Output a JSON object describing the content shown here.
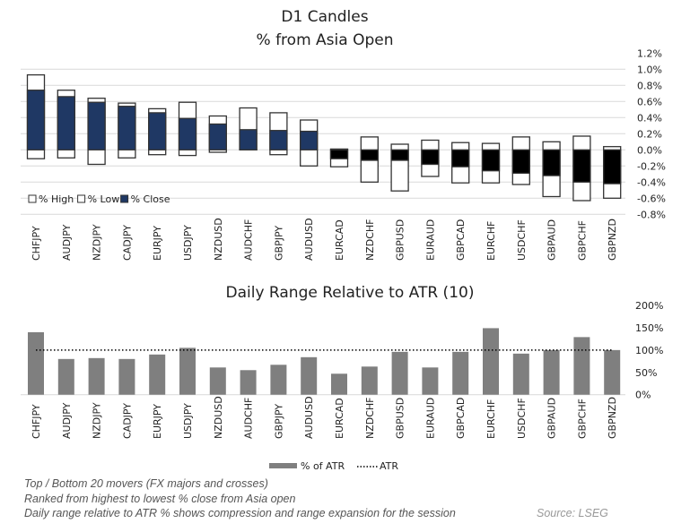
{
  "chart_data": [
    {
      "type": "bar",
      "subtype": "floating-candle",
      "title": "D1 Candles",
      "subtitle": "% from Asia Open",
      "categories": [
        "CHFJPY",
        "AUDJPY",
        "NZDJPY",
        "CADJPY",
        "EURJPY",
        "USDJPY",
        "NZDUSD",
        "AUDCHF",
        "GBPJPY",
        "AUDUSD",
        "EURCAD",
        "NZDCHF",
        "GBPUSD",
        "EURAUD",
        "GBPCAD",
        "EURCHF",
        "USDCHF",
        "GBPAUD",
        "GBPCHF",
        "GBPNZD"
      ],
      "series": [
        {
          "name": "% High",
          "values": [
            0.93,
            0.74,
            0.64,
            0.58,
            0.51,
            0.59,
            0.42,
            0.52,
            0.46,
            0.37,
            0.01,
            0.16,
            0.07,
            0.12,
            0.09,
            0.08,
            0.16,
            0.1,
            0.17,
            0.04
          ]
        },
        {
          "name": "% Low",
          "values": [
            -0.11,
            -0.1,
            -0.18,
            -0.1,
            -0.06,
            -0.07,
            -0.03,
            0.0,
            -0.06,
            -0.2,
            -0.21,
            -0.4,
            -0.51,
            -0.33,
            -0.41,
            -0.41,
            -0.43,
            -0.58,
            -0.63,
            -0.6
          ]
        },
        {
          "name": "% Close",
          "values": [
            0.74,
            0.66,
            0.59,
            0.54,
            0.46,
            0.39,
            0.32,
            0.25,
            0.24,
            0.23,
            -0.11,
            -0.13,
            -0.13,
            -0.18,
            -0.21,
            -0.26,
            -0.29,
            -0.32,
            -0.4,
            -0.42
          ]
        }
      ],
      "yticks": [
        "1.2%",
        "1.0%",
        "0.8%",
        "0.6%",
        "0.4%",
        "0.2%",
        "0.0%",
        "-0.2%",
        "-0.4%",
        "-0.6%",
        "-0.8%"
      ],
      "ylim": [
        -0.8,
        1.2
      ],
      "grid": true,
      "legend": "bottom-left",
      "colors": {
        "positive_close": "#1f3864",
        "negative_close": "#000000",
        "range": "#ffffff",
        "border": "#333333"
      }
    },
    {
      "type": "bar",
      "title": "Daily Range Relative to ATR (10)",
      "categories": [
        "CHFJPY",
        "AUDJPY",
        "NZDJPY",
        "CADJPY",
        "EURJPY",
        "USDJPY",
        "NZDUSD",
        "AUDCHF",
        "GBPJPY",
        "AUDUSD",
        "EURCAD",
        "NZDCHF",
        "GBPUSD",
        "EURAUD",
        "GBPCAD",
        "EURCHF",
        "USDCHF",
        "GBPAUD",
        "GBPCHF",
        "GBPNZD"
      ],
      "series": [
        {
          "name": "% of ATR",
          "values": [
            140,
            80,
            82,
            80,
            90,
            105,
            61,
            55,
            67,
            84,
            47,
            63,
            96,
            61,
            96,
            149,
            92,
            100,
            129,
            100
          ]
        },
        {
          "name": "ATR",
          "values": [
            100,
            100,
            100,
            100,
            100,
            100,
            100,
            100,
            100,
            100,
            100,
            100,
            100,
            100,
            100,
            100,
            100,
            100,
            100,
            100
          ]
        }
      ],
      "yticks": [
        "200%",
        "150%",
        "100%",
        "50%",
        "0%"
      ],
      "ylim": [
        0,
        200
      ],
      "grid": false,
      "legend": "bottom",
      "colors": {
        "bar": "#7f7f7f",
        "atr_line": "#000000"
      }
    }
  ],
  "notes": [
    "Top / Bottom 20 movers (FX majors and crosses)",
    "Ranked from highest to lowest % close from Asia open",
    "Daily range relative to ATR % shows compression and range expansion for the session"
  ],
  "source": "Source: LSEG"
}
